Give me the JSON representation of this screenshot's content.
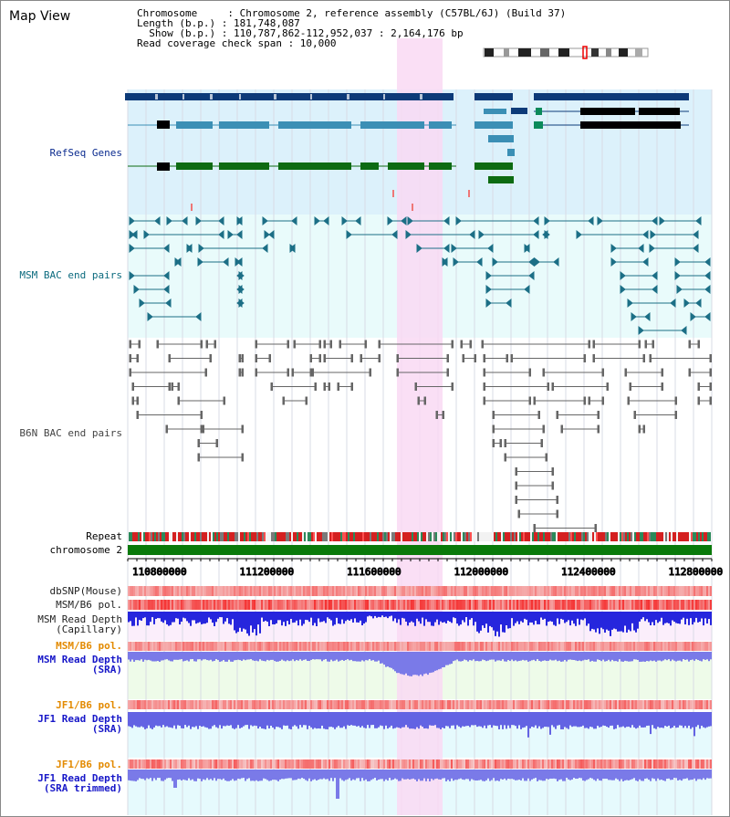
{
  "view": {
    "title": "Map View",
    "info_lines": [
      "Chromosome     : Chromosome 2, reference assembly (C57BL/6J) (Build 37)",
      "Length (b.p.) : 181,748,087",
      "  Show (b.p.) : 110,787,862-112,952,037 : 2,164,176 bp",
      "Read coverage check span : 10,000"
    ]
  },
  "tracks": {
    "refseq_label": "RefSeq Genes",
    "msm_bac_label": "MSM BAC end pairs",
    "b6n_bac_label": "B6N BAC end pairs",
    "repeat_label": "Repeat",
    "chromosome_label": "chromosome 2",
    "dbsnp_label": "dbSNP(Mouse)",
    "msm_b6_pol_label_1": "MSM/B6 pol.",
    "msm_depth_cap_label": "MSM Read Depth\n(Capillary)",
    "msm_b6_pol_label_2": "MSM/B6 pol.",
    "msm_depth_sra_label": "MSM Read Depth\n(SRA)",
    "jf1_b6_pol_label_1": "JF1/B6 pol.",
    "jf1_depth_sra_label": "JF1 Read Depth\n(SRA)",
    "jf1_b6_pol_label_2": "JF1/B6 pol.",
    "jf1_depth_trim_label": "JF1 Read Depth\n(SRA trimmed)"
  },
  "axis": {
    "ticks": [
      "110800000",
      "111200000",
      "111600000",
      "112000000",
      "112400000",
      "112800000"
    ]
  },
  "colors": {
    "highlight": "#f9d9f3",
    "refseq_bg": "#dcf1fb",
    "msm_bg": "#e9fbfb",
    "refseq_dark": "#0d3a78",
    "refseq_mid": "#3b8fb5",
    "refseq_green": "#0d6b12",
    "msm_pair": "#1c6f86",
    "b6n_pair": "#666666",
    "chrom_green": "#0a7a0a",
    "depth_blue": "#2222dd",
    "pol_red": "#e83030"
  }
}
